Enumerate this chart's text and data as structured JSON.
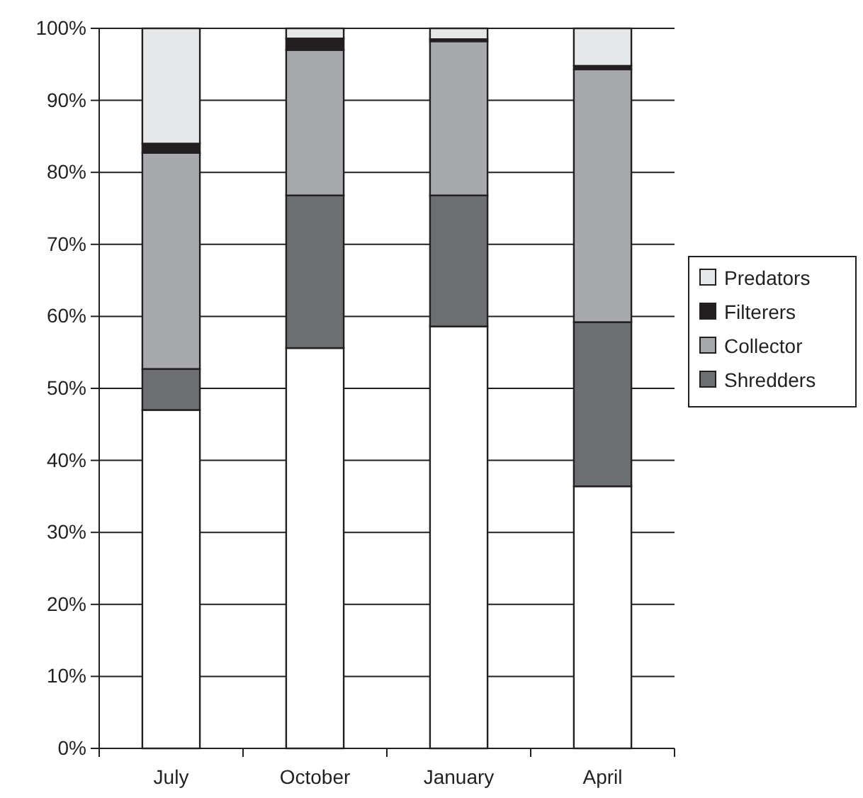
{
  "chart_data": {
    "type": "bar",
    "stacked": true,
    "categories": [
      "July",
      "October",
      "January",
      "April"
    ],
    "series": [
      {
        "color": "#ffffff",
        "values": [
          47,
          55.6,
          58.6,
          36.4
        ]
      },
      {
        "name": "Shredders",
        "color": "#6d6e71",
        "values": [
          5.7,
          21.2,
          18.2,
          22.8
        ]
      },
      {
        "name": "Collector",
        "color": "#a7a9ac",
        "values": [
          30,
          20.2,
          21.4,
          35.1
        ]
      },
      {
        "name": "Filterers",
        "color": "#231f20",
        "values": [
          1.3,
          1.6,
          0.3,
          0.5
        ]
      },
      {
        "name": "Predators",
        "color": "#e6e7e8",
        "values": [
          16,
          1.4,
          1.5,
          5.2
        ]
      }
    ],
    "ylim": [
      0,
      100
    ],
    "yticks": [
      {
        "value": 0,
        "label": "0%"
      },
      {
        "value": 10,
        "label": "10%"
      },
      {
        "value": 20,
        "label": "20%"
      },
      {
        "value": 30,
        "label": "30%"
      },
      {
        "value": 40,
        "label": "40%"
      },
      {
        "value": 50,
        "label": "50%"
      },
      {
        "value": 60,
        "label": "60%"
      },
      {
        "value": 70,
        "label": "70%"
      },
      {
        "value": 80,
        "label": "80%"
      },
      {
        "value": 90,
        "label": "90%"
      },
      {
        "value": 100,
        "label": "100%"
      }
    ],
    "grid": "y",
    "legend": "right"
  }
}
